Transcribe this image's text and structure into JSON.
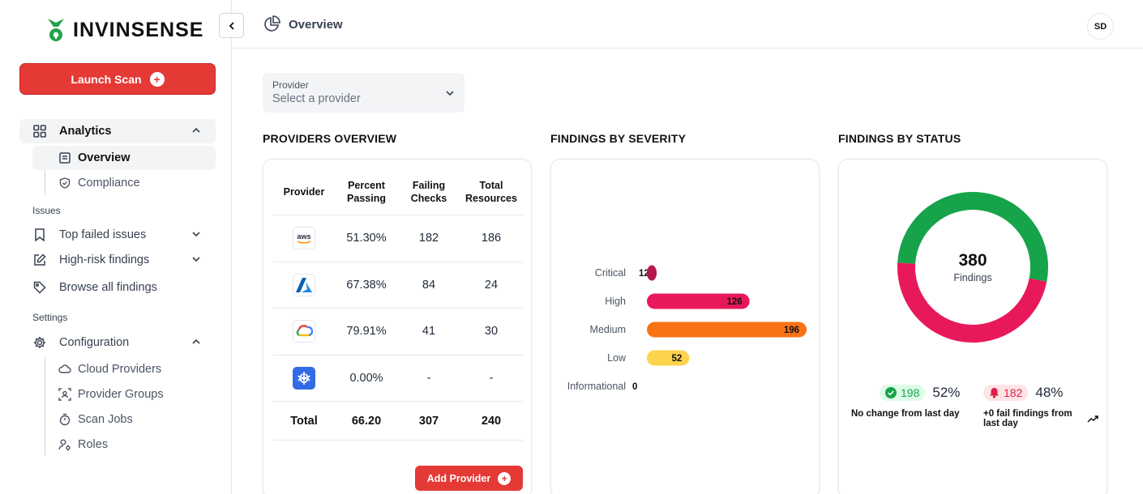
{
  "brand": {
    "name": "INVINSENSE"
  },
  "sidebar": {
    "launch_label": "Launch Scan",
    "analytics_label": "Analytics",
    "analytics_items": [
      {
        "label": "Overview",
        "icon": "overview-icon"
      },
      {
        "label": "Compliance",
        "icon": "shield-icon"
      }
    ],
    "issues_label": "Issues",
    "issues_items": [
      {
        "label": "Top failed issues",
        "icon": "bookmark-icon"
      },
      {
        "label": "High-risk findings",
        "icon": "edit-icon"
      },
      {
        "label": "Browse all findings",
        "icon": "tag-icon"
      }
    ],
    "settings_label": "Settings",
    "configuration_label": "Configuration",
    "config_items": [
      {
        "label": "Cloud Providers",
        "icon": "cloud-icon"
      },
      {
        "label": "Provider Groups",
        "icon": "group-icon"
      },
      {
        "label": "Scan Jobs",
        "icon": "timer-icon"
      },
      {
        "label": "Roles",
        "icon": "roles-icon"
      }
    ]
  },
  "header": {
    "title": "Overview",
    "avatar": "SD"
  },
  "provider_select": {
    "label": "Provider",
    "placeholder": "Select a provider"
  },
  "providers_overview": {
    "title": "PROVIDERS OVERVIEW",
    "columns": [
      "Provider",
      "Percent Passing",
      "Failing Checks",
      "Total Resources"
    ],
    "rows": [
      {
        "provider": "aws",
        "percent": "51.30%",
        "failing": "182",
        "resources": "186"
      },
      {
        "provider": "azure",
        "percent": "67.38%",
        "failing": "84",
        "resources": "24"
      },
      {
        "provider": "gcp",
        "percent": "79.91%",
        "failing": "41",
        "resources": "30"
      },
      {
        "provider": "kubernetes",
        "percent": "0.00%",
        "failing": "-",
        "resources": "-"
      }
    ],
    "total": {
      "label": "Total",
      "percent": "66.20",
      "failing": "307",
      "resources": "240"
    },
    "add_label": "Add Provider"
  },
  "severity": {
    "title": "FINDINGS BY SEVERITY"
  },
  "status": {
    "title": "FINDINGS BY STATUS",
    "total": "380",
    "total_label": "Findings",
    "pass_count": "198",
    "pass_pct": "52%",
    "pass_note": "No change from last day",
    "fail_count": "182",
    "fail_pct": "48%",
    "fail_note": "+0 fail findings from last day",
    "colors": {
      "pass": "#16a34a",
      "fail": "#e8195a"
    }
  },
  "chart_data": {
    "type": "bar",
    "orientation": "horizontal",
    "categories": [
      "Critical",
      "High",
      "Medium",
      "Low",
      "Informational"
    ],
    "values": [
      12,
      126,
      196,
      52,
      0
    ],
    "colors": [
      "#b5174d",
      "#e8195a",
      "#f97316",
      "#fcd34d",
      "#9ca3af"
    ],
    "xlim": [
      0,
      196
    ]
  }
}
